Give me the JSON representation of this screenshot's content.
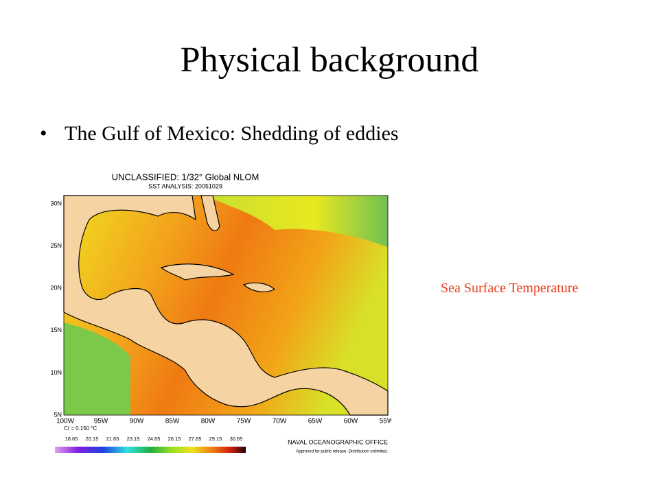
{
  "slide": {
    "title": "Physical background",
    "bullets": [
      "The Gulf of Mexico: Shedding of eddies"
    ],
    "map": {
      "header": [
        "UNCLASSIFIED: 1/32° Global NLOM",
        "SST ANALYSIS: 20051029"
      ],
      "lat_labels": [
        "30N",
        "25N",
        "20N",
        "15N",
        "10N",
        "5N"
      ],
      "lon_labels": [
        "100W",
        "95W",
        "90W",
        "85W",
        "80W",
        "75W",
        "70W",
        "65W",
        "60W",
        "55W"
      ],
      "contour_interval": "CI = 0.150 °C",
      "colorbar_labels": [
        "18.65",
        "20.15",
        "21.65",
        "23.15",
        "24.65",
        "26.15",
        "27.65",
        "29.15",
        "30.65"
      ],
      "credit": "NAVAL OCEANOGRAPHIC OFFICE",
      "release": "Approved for public release. Distribution unlimited."
    },
    "caption": "Sea Surface Temperature"
  }
}
